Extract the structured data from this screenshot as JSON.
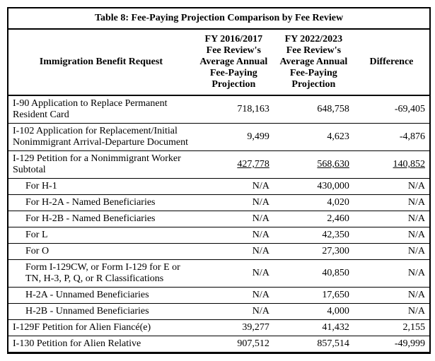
{
  "title": "Table 8: Fee-Paying Projection Comparison by Fee Review",
  "headers": {
    "col1": "Immigration Benefit Request",
    "col2": "FY 2016/2017 Fee Review's Average Annual Fee-Paying Projection",
    "col3": "FY 2022/2023 Fee Review's Average Annual Fee-Paying Projection",
    "col4": "Difference"
  },
  "rows": [
    {
      "label": "I-90 Application to Replace Permanent Resident Card",
      "v1": "718,163",
      "v2": "648,758",
      "diff": "-69,405",
      "indent": false,
      "underline": false
    },
    {
      "label": "I-102 Application for Replacement/Initial Nonimmigrant Arrival-Departure Document",
      "v1": "9,499",
      "v2": "4,623",
      "diff": "-4,876",
      "indent": false,
      "underline": false
    },
    {
      "label": "I-129 Petition for a Nonimmigrant Worker Subtotal",
      "v1": "427,778",
      "v2": "568,630",
      "diff": "140,852",
      "indent": false,
      "underline": true
    },
    {
      "label": "For H-1",
      "v1": "N/A",
      "v2": "430,000",
      "diff": "N/A",
      "indent": true,
      "underline": false
    },
    {
      "label": "For H-2A - Named Beneficiaries",
      "v1": "N/A",
      "v2": "4,020",
      "diff": "N/A",
      "indent": true,
      "underline": false
    },
    {
      "label": "For H-2B - Named Beneficiaries",
      "v1": "N/A",
      "v2": "2,460",
      "diff": "N/A",
      "indent": true,
      "underline": false
    },
    {
      "label": "For L",
      "v1": "N/A",
      "v2": "42,350",
      "diff": "N/A",
      "indent": true,
      "underline": false
    },
    {
      "label": "For O",
      "v1": "N/A",
      "v2": "27,300",
      "diff": "N/A",
      "indent": true,
      "underline": false
    },
    {
      "label": "Form I-129CW, or Form I-129 for E or TN, H-3, P, Q, or R Classifications",
      "v1": "N/A",
      "v2": "40,850",
      "diff": "N/A",
      "indent": true,
      "underline": false
    },
    {
      "label": "H-2A - Unnamed Beneficiaries",
      "v1": "N/A",
      "v2": "17,650",
      "diff": "N/A",
      "indent": true,
      "underline": false
    },
    {
      "label": "H-2B - Unnamed Beneficiaries",
      "v1": "N/A",
      "v2": "4,000",
      "diff": "N/A",
      "indent": true,
      "underline": false
    },
    {
      "label": "I-129F Petition for Alien Fiancé(e)",
      "v1": "39,277",
      "v2": "41,432",
      "diff": "2,155",
      "indent": false,
      "underline": false
    },
    {
      "label": "I-130 Petition for Alien Relative",
      "v1": "907,512",
      "v2": "857,514",
      "diff": "-49,999",
      "indent": false,
      "underline": false
    }
  ]
}
